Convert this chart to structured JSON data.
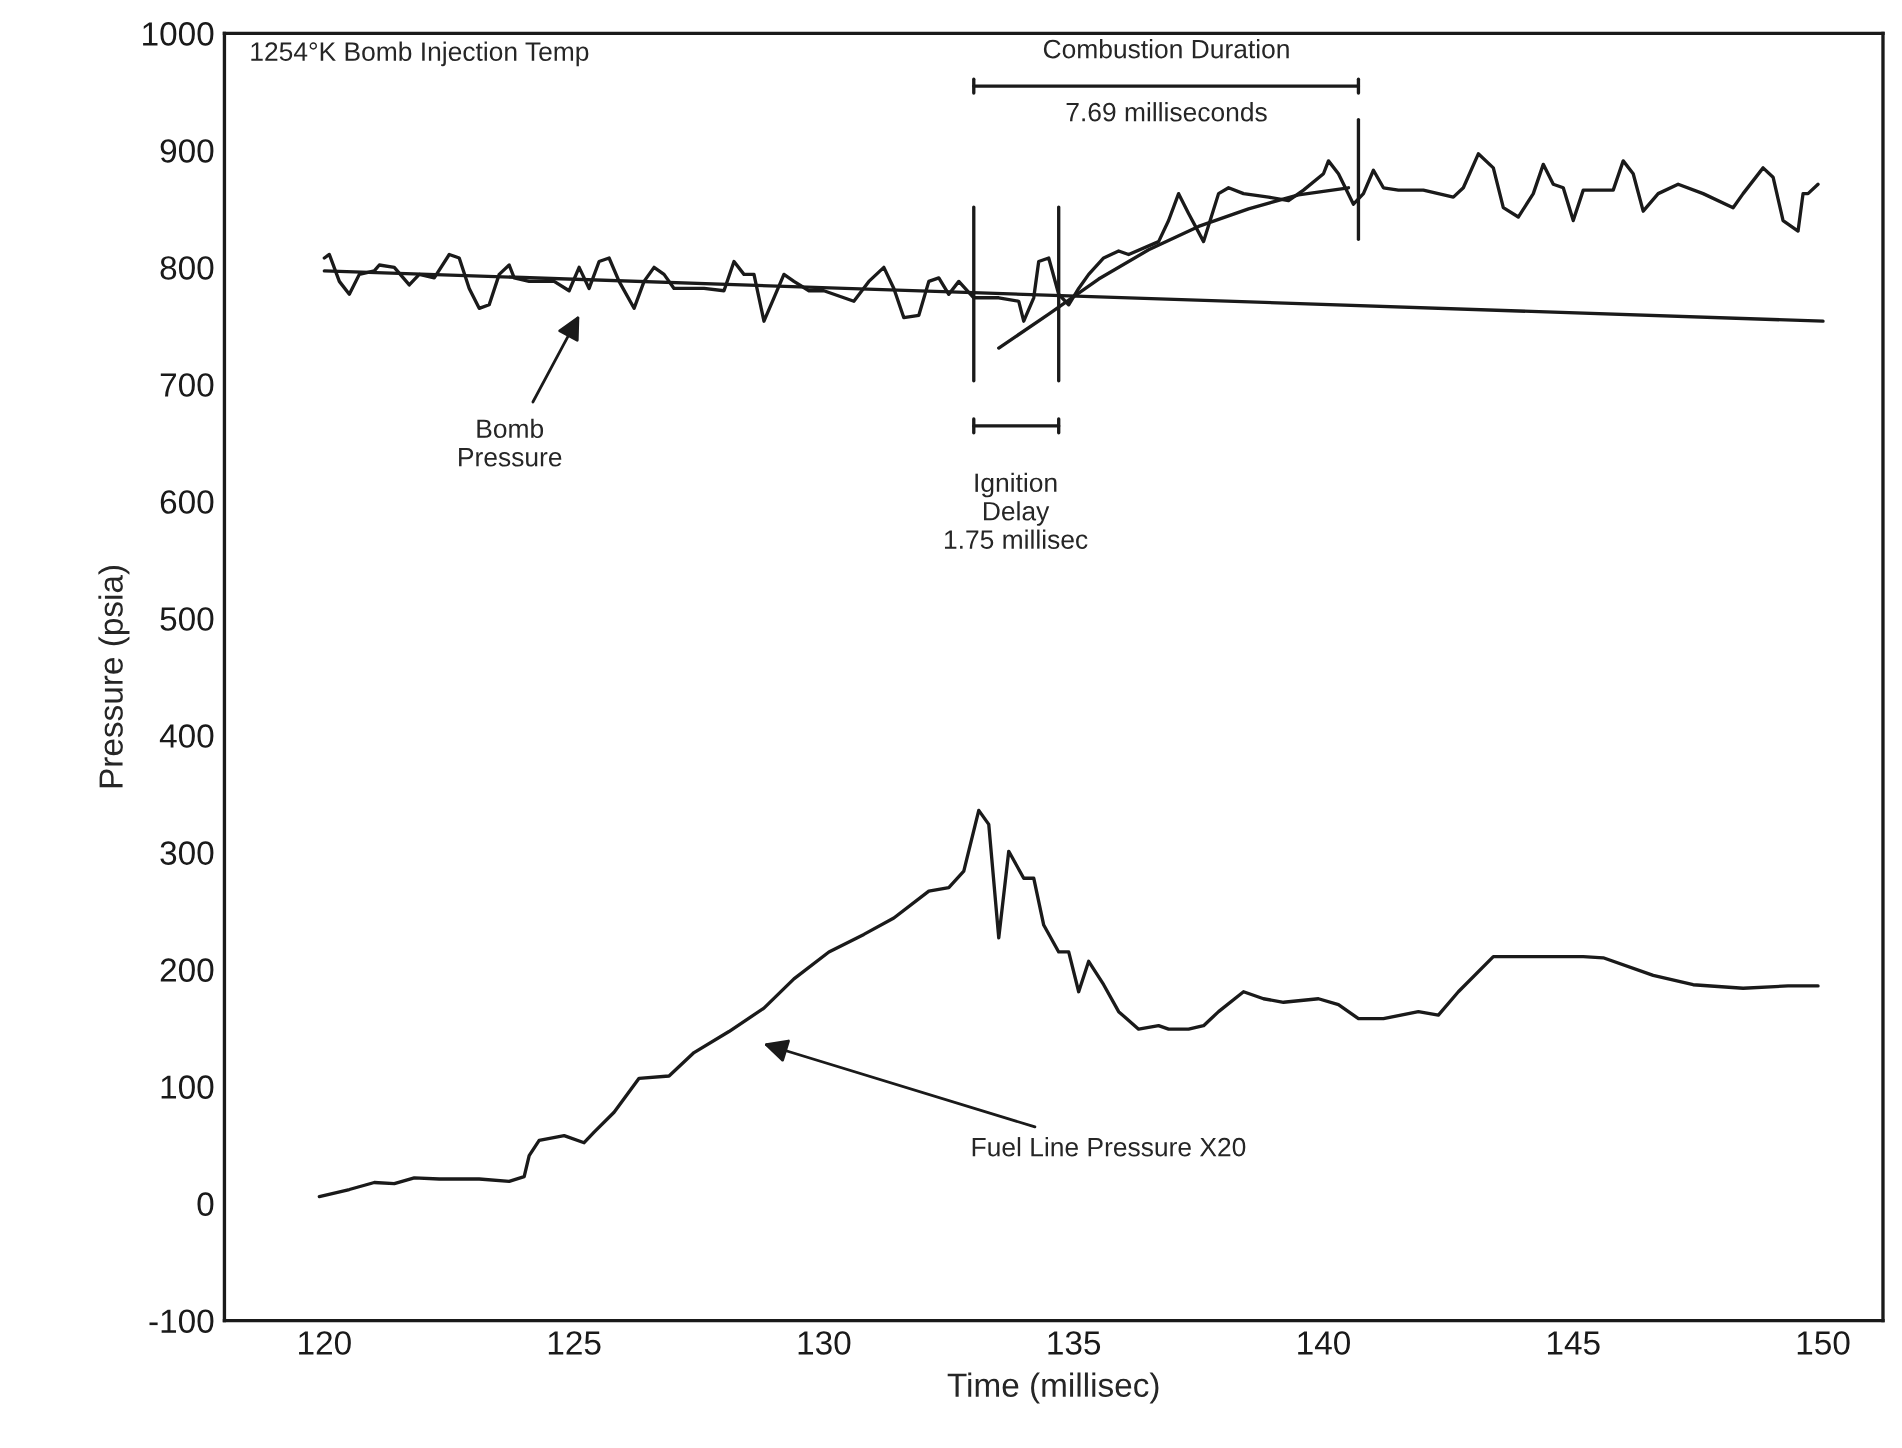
{
  "chart_data": {
    "type": "line",
    "xlabel": "Time (millisec)",
    "ylabel": "Pressure (psia)",
    "xlim": [
      118,
      151.2
    ],
    "ylim": [
      -100,
      1000
    ],
    "xticks": [
      120,
      125,
      130,
      135,
      140,
      145,
      150
    ],
    "yticks": [
      -100,
      0,
      100,
      200,
      300,
      400,
      500,
      600,
      700,
      800,
      900,
      1000
    ],
    "grid": false,
    "marker": "none",
    "line_style": "solid",
    "series": [
      {
        "color": "#1a1a1a",
        "x": [
          120.0,
          120.1,
          120.3,
          120.5,
          120.7,
          121.0,
          121.1,
          121.4,
          121.7,
          121.9,
          122.2,
          122.5,
          122.7,
          122.9,
          123.1,
          123.3,
          123.5,
          123.7,
          123.8,
          124.1,
          124.6,
          124.9,
          125.1,
          125.3,
          125.5,
          125.7,
          125.9,
          126.2,
          126.4,
          126.6,
          126.8,
          127.0,
          127.6,
          128.0,
          128.2,
          128.4,
          128.6,
          128.8,
          129.0,
          129.2,
          129.4,
          129.7,
          130.0,
          130.2,
          130.6,
          130.9,
          131.2,
          131.4,
          131.6,
          131.9,
          132.1,
          132.3,
          132.5,
          132.7,
          133.0,
          133.5,
          133.9,
          134.0,
          134.2,
          134.3,
          134.5,
          134.7,
          134.9,
          135.1,
          135.3,
          135.6,
          135.9,
          136.1,
          136.7,
          136.9,
          137.1,
          137.3,
          137.6,
          137.9,
          138.1,
          138.4,
          138.9,
          139.3,
          139.6,
          140.0,
          140.1,
          140.3,
          140.6,
          140.8,
          141.0,
          141.2,
          141.5,
          142.0,
          142.6,
          142.8,
          143.1,
          143.4,
          143.6,
          143.9,
          144.2,
          144.4,
          144.6,
          144.8,
          145.0,
          145.2,
          145.8,
          146.0,
          146.2,
          146.4,
          146.7,
          147.1,
          147.6,
          148.2,
          148.4,
          148.8,
          149.0,
          149.2,
          149.5,
          149.6,
          149.7,
          149.9
        ],
        "values": [
          808,
          811,
          788,
          777,
          794,
          797,
          802,
          800,
          785,
          794,
          791,
          811,
          808,
          782,
          765,
          768,
          794,
          802,
          791,
          788,
          788,
          780,
          800,
          782,
          805,
          808,
          788,
          765,
          788,
          800,
          794,
          782,
          782,
          780,
          805,
          794,
          794,
          754,
          774,
          794,
          788,
          780,
          780,
          777,
          771,
          788,
          800,
          782,
          757,
          759,
          788,
          791,
          777,
          788,
          774,
          774,
          771,
          754,
          774,
          805,
          808,
          777,
          768,
          782,
          794,
          808,
          814,
          811,
          822,
          840,
          863,
          846,
          822,
          863,
          868,
          863,
          860,
          857,
          866,
          880,
          891,
          880,
          854,
          863,
          883,
          868,
          866,
          866,
          860,
          868,
          897,
          885,
          851,
          843,
          863,
          888,
          871,
          868,
          840,
          866,
          866,
          891,
          880,
          848,
          863,
          871,
          863,
          851,
          863,
          885,
          877,
          840,
          831,
          863,
          863,
          871
        ]
      },
      {
        "color": "#1a1a1a",
        "x": [
          120,
          150
        ],
        "values": [
          797,
          754
        ]
      },
      {
        "color": "#1a1a1a",
        "x": [
          133.5,
          134.5,
          135.5,
          136.5,
          137.5,
          138.5,
          139.5,
          140.5
        ],
        "values": [
          731,
          760,
          790,
          815,
          835,
          850,
          862,
          868
        ]
      },
      {
        "color": "#1a1a1a",
        "x": [
          119.9,
          120.5,
          121.0,
          121.4,
          121.8,
          122.3,
          123.1,
          123.7,
          124.0,
          124.1,
          124.3,
          124.8,
          125.2,
          125.4,
          125.8,
          126.3,
          126.9,
          127.4,
          128.1,
          128.8,
          129.4,
          130.1,
          130.8,
          131.4,
          132.1,
          132.5,
          132.8,
          133.1,
          133.3,
          133.5,
          133.7,
          134.0,
          134.2,
          134.4,
          134.7,
          134.9,
          135.1,
          135.3,
          135.6,
          135.9,
          136.3,
          136.7,
          136.9,
          137.3,
          137.6,
          137.9,
          138.4,
          138.8,
          139.2,
          139.9,
          140.3,
          140.7,
          141.2,
          141.9,
          142.3,
          142.7,
          143.4,
          144.2,
          145.2,
          145.6,
          146.6,
          147.4,
          148.4,
          149.3,
          149.9
        ],
        "values": [
          6,
          12,
          18,
          17,
          22,
          21,
          21,
          19,
          23,
          41,
          54,
          58,
          52,
          61,
          78,
          107,
          109,
          129,
          147,
          167,
          192,
          215,
          230,
          244,
          267,
          270,
          284,
          336,
          324,
          227,
          301,
          278,
          278,
          238,
          215,
          215,
          181,
          207,
          187,
          164,
          149,
          152,
          149,
          149,
          152,
          164,
          181,
          175,
          172,
          175,
          170,
          158,
          158,
          164,
          161,
          181,
          211,
          211,
          211,
          210,
          195,
          187,
          184,
          186,
          186
        ]
      }
    ],
    "ref_lines": [
      {
        "axis": "x",
        "value": 133.0,
        "color": "#1a1a1a"
      },
      {
        "axis": "x",
        "value": 134.7,
        "color": "#1a1a1a"
      },
      {
        "axis": "x",
        "value": 140.7,
        "color": "#1a1a1a"
      }
    ],
    "annotations": [
      "1254°K Bomb Injection Temp",
      "Combustion Duration",
      "7.69 milliseconds",
      "Ignition\nDelay\n1.75 millisec",
      "Bomb\nPressure",
      "Fuel Line Pressure X20"
    ]
  }
}
